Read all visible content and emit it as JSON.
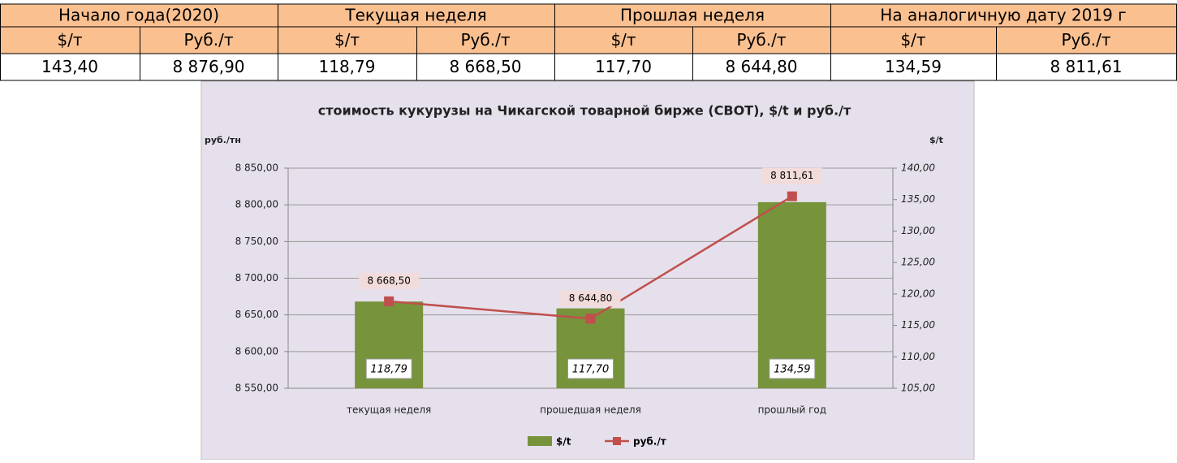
{
  "table": {
    "header": [
      "Начало года(2020)",
      "Текущая неделя",
      "Прошлая неделя",
      "На аналогичную дату 2019 г"
    ],
    "subheader": [
      "$/т",
      "Руб./т",
      "$/т",
      "Руб./т",
      "$/т",
      "Руб./т",
      "$/т",
      "Руб./т"
    ],
    "values": [
      "143,40",
      "8 876,90",
      "118,79",
      "8 668,50",
      "117,70",
      "8 644,80",
      "134,59",
      "8 811,61"
    ]
  },
  "chart_data": {
    "type": "bar-line",
    "title": "стоимость кукурузы на Чикагской товарной бирже (CBOT), $/t и руб./т",
    "ylabel": "руб./тн",
    "y2label": "$/t",
    "categories": [
      "текущая неделя",
      "прошедшая неделя",
      "прошлый год"
    ],
    "series": [
      {
        "name": "$/t",
        "color": "#77933c",
        "type": "bar",
        "axis": "y2",
        "values": [
          118.79,
          117.7,
          134.59
        ],
        "value_labels": [
          "118,79",
          "117,70",
          "134,59"
        ]
      },
      {
        "name": "руб./т",
        "color": "#c0504d",
        "type": "line",
        "axis": "y",
        "values": [
          8668.5,
          8644.8,
          8811.61
        ],
        "value_labels": [
          "8 668,50",
          "8 644,80",
          "8 811,61"
        ]
      }
    ],
    "ylim": [
      8550,
      8850
    ],
    "yticks": [
      {
        "value": 8550,
        "label": "8 550,00"
      },
      {
        "value": 8600,
        "label": "8 600,00"
      },
      {
        "value": 8650,
        "label": "8 650,00"
      },
      {
        "value": 8700,
        "label": "8 700,00"
      },
      {
        "value": 8750,
        "label": "8 750,00"
      },
      {
        "value": 8800,
        "label": "8 800,00"
      },
      {
        "value": 8850,
        "label": "8 850,00"
      }
    ],
    "y2lim": [
      105,
      140
    ],
    "y2ticks": [
      {
        "value": 105,
        "label": "105,00"
      },
      {
        "value": 110,
        "label": "110,00"
      },
      {
        "value": 115,
        "label": "115,00"
      },
      {
        "value": 120,
        "label": "120,00"
      },
      {
        "value": 125,
        "label": "125,00"
      },
      {
        "value": 130,
        "label": "130,00"
      },
      {
        "value": 135,
        "label": "135,00"
      },
      {
        "value": 140,
        "label": "140,00"
      }
    ],
    "grid": true,
    "legend": "bottom"
  }
}
